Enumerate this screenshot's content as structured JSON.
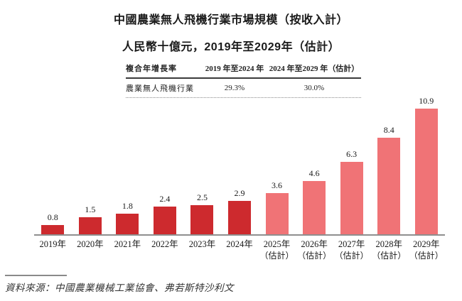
{
  "title": {
    "line1": "中國農業無人飛機行業市場規模（按收入計）",
    "line2": "人民幣十億元，2019年至2029年（估計）"
  },
  "cagr_table": {
    "header": {
      "metric": "複合年增長率",
      "period1": "2019 年至2024 年",
      "period2": "2024 年至2029 年（估計）"
    },
    "row": {
      "metric": "農業無人飛機行業",
      "period1": "29.3%",
      "period2": "30.0%"
    }
  },
  "chart_data": {
    "type": "bar",
    "title": "中國農業無人飛機行業市場規模（按收入計）",
    "subtitle": "人民幣十億元，2019年至2029年（估計）",
    "ylabel": "人民幣十億元",
    "ylim": [
      0,
      11.5
    ],
    "grid": false,
    "legend": "none",
    "value_labels": "above-bars",
    "colors": {
      "actual": "#CD2A2E",
      "estimate": "#F07376",
      "axis": "#8f8f8f"
    },
    "bars": [
      {
        "label": "2019年",
        "sublabel": "",
        "value": 0.8,
        "display": "0.8",
        "estimate": false
      },
      {
        "label": "2020年",
        "sublabel": "",
        "value": 1.5,
        "display": "1.5",
        "estimate": false
      },
      {
        "label": "2021年",
        "sublabel": "",
        "value": 1.8,
        "display": "1.8",
        "estimate": false
      },
      {
        "label": "2022年",
        "sublabel": "",
        "value": 2.4,
        "display": "2.4",
        "estimate": false
      },
      {
        "label": "2023年",
        "sublabel": "",
        "value": 2.5,
        "display": "2.5",
        "estimate": false
      },
      {
        "label": "2024年",
        "sublabel": "",
        "value": 2.9,
        "display": "2.9",
        "estimate": false
      },
      {
        "label": "2025年",
        "sublabel": "（估計）",
        "value": 3.6,
        "display": "3.6",
        "estimate": true
      },
      {
        "label": "2026年",
        "sublabel": "（估計）",
        "value": 4.6,
        "display": "4.6",
        "estimate": true
      },
      {
        "label": "2027年",
        "sublabel": "（估計）",
        "value": 6.3,
        "display": "6.3",
        "estimate": true
      },
      {
        "label": "2028年",
        "sublabel": "（估計）",
        "value": 8.4,
        "display": "8.4",
        "estimate": true
      },
      {
        "label": "2029年",
        "sublabel": "（估計）",
        "value": 10.9,
        "display": "10.9",
        "estimate": true
      }
    ]
  },
  "source": {
    "text": "資料來源：中國農業機械工業協會、弗若斯特沙利文"
  }
}
